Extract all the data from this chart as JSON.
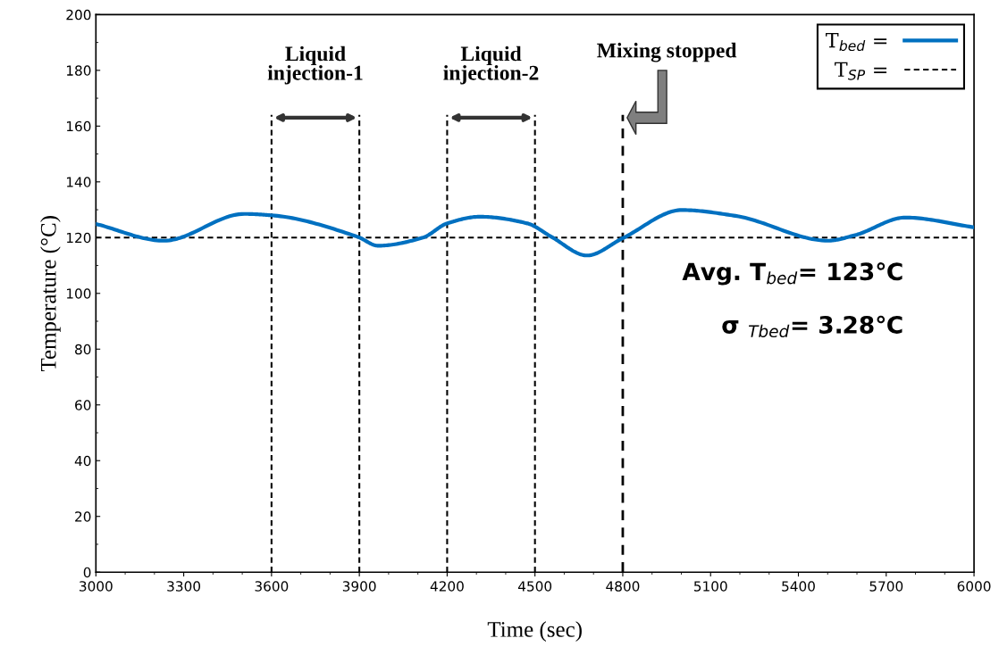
{
  "chart_data": {
    "type": "line",
    "xlabel": "Time (sec)",
    "ylabel": "Temperature (°C)",
    "xlim": [
      3000,
      6000
    ],
    "xticks": [
      3000,
      3300,
      3600,
      3900,
      4200,
      4500,
      4800,
      5100,
      5400,
      5700,
      6000
    ],
    "ylim": [
      0,
      200
    ],
    "yticks": [
      0,
      20,
      40,
      60,
      80,
      100,
      120,
      140,
      160,
      180,
      200
    ],
    "grid": false,
    "legend": "top right",
    "marker": "none",
    "line_style": "solid",
    "series": [
      {
        "name": "T$_{bed}$ =",
        "color": "#0070c0",
        "x": [
          3000,
          3232,
          3507,
          3600,
          3894,
          3964,
          4117,
          4200,
          4312,
          4474,
          4556,
          4678,
          4800,
          5002,
          5185,
          5502,
          5594,
          5765,
          6000
        ],
        "values": [
          124.9,
          118.9,
          128.5,
          128,
          120.3,
          117.1,
          120,
          125.1,
          127.5,
          125.1,
          120.3,
          113.6,
          119.8,
          129.9,
          127.8,
          118.9,
          120.9,
          127.2,
          123.7
        ]
      }
    ],
    "ref_lines": [
      {
        "axis": "y",
        "value": 120,
        "label": "T$_{SP}$ =",
        "color": "#000000",
        "line_style": "dashed"
      },
      {
        "axis": "x",
        "value": 3600,
        "color": "#000000",
        "line_style": "dashed"
      },
      {
        "axis": "x",
        "value": 3900,
        "color": "#000000",
        "line_style": "dashed"
      },
      {
        "axis": "x",
        "value": 4200,
        "color": "#000000",
        "line_style": "dashed"
      },
      {
        "axis": "x",
        "value": 4500,
        "color": "#000000",
        "line_style": "dashed"
      },
      {
        "axis": "x",
        "value": 4800,
        "label": "Mixing stopped",
        "color": "#000000",
        "line_style": "dashed"
      }
    ],
    "annotations": [
      "Liquid\ninjection-1",
      "Liquid\ninjection-2",
      "Avg. T$_{bed}$= 123℃",
      "σ $_{Tbed}$= 3.28℃"
    ]
  }
}
